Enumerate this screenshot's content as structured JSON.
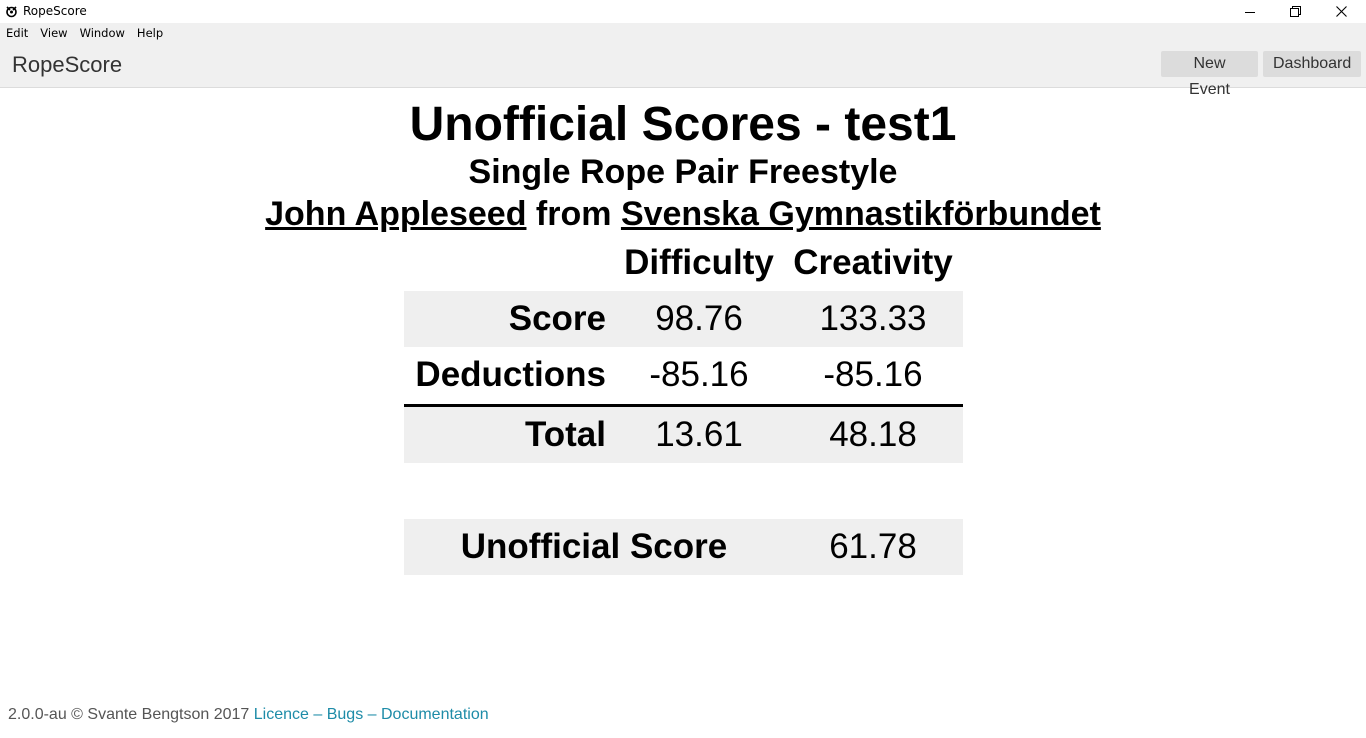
{
  "window": {
    "title": "RopeScore"
  },
  "menu": {
    "items": [
      "Edit",
      "View",
      "Window",
      "Help"
    ]
  },
  "header": {
    "brand": "RopeScore",
    "new_event_label": "New Event",
    "dashboard_label": "Dashboard"
  },
  "main": {
    "title": "Unofficial Scores - test1",
    "event": "Single Rope Pair Freestyle",
    "participant": "John Appleseed",
    "from_word": "from",
    "organisation": "Svenska Gymnastikförbundet",
    "columns": {
      "difficulty": "Difficulty",
      "creativity": "Creativity"
    },
    "rows": {
      "score": {
        "label": "Score",
        "difficulty": "98.76",
        "creativity": "133.33"
      },
      "deductions": {
        "label": "Deductions",
        "difficulty": "-85.16",
        "creativity": "-85.16"
      },
      "total": {
        "label": "Total",
        "difficulty": "13.61",
        "creativity": "48.18"
      }
    },
    "final": {
      "label": "Unofficial Score",
      "value": "61.78"
    }
  },
  "footer": {
    "text": "2.0.0-au © Svante Bengtson 2017",
    "licence": "Licence",
    "sep1": "–",
    "bugs": "Bugs",
    "sep2": "–",
    "documentation": "Documentation"
  },
  "colors": {
    "accent_link": "#1e8ca8",
    "row_shade": "#efefef",
    "header_bg": "#f0f0f0"
  }
}
